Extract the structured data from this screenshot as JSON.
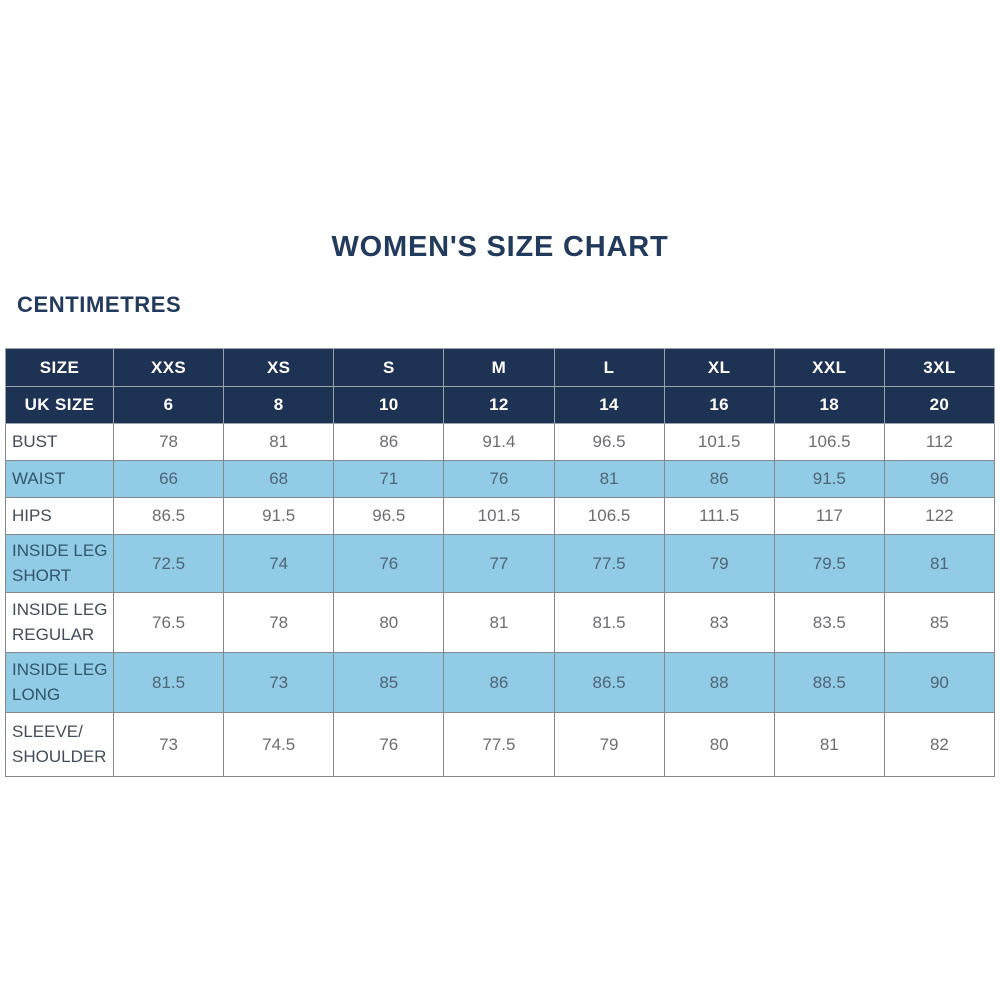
{
  "title": "WOMEN'S SIZE CHART",
  "subtitle": "CENTIMETRES",
  "colors": {
    "header_bg": "#1e3253",
    "header_text": "#ffffff",
    "highlight_row_bg": "#92cbe5",
    "grid_border": "#85898c",
    "title_text": "#223a5c",
    "value_text": "#6d6e71"
  },
  "chart_data": {
    "type": "table",
    "title": "WOMEN'S SIZE CHART",
    "unit": "CENTIMETRES",
    "header_rows": [
      {
        "label": "SIZE",
        "cells": [
          "XXS",
          "XS",
          "S",
          "M",
          "L",
          "XL",
          "XXL",
          "3XL"
        ]
      },
      {
        "label": "UK SIZE",
        "cells": [
          "6",
          "8",
          "10",
          "12",
          "14",
          "16",
          "18",
          "20"
        ]
      }
    ],
    "body_rows": [
      {
        "label": "BUST",
        "highlighted": false,
        "cells": [
          "78",
          "81",
          "86",
          "91.4",
          "96.5",
          "101.5",
          "106.5",
          "112"
        ]
      },
      {
        "label": "WAIST",
        "highlighted": true,
        "cells": [
          "66",
          "68",
          "71",
          "76",
          "81",
          "86",
          "91.5",
          "96"
        ]
      },
      {
        "label": "HIPS",
        "highlighted": false,
        "cells": [
          "86.5",
          "91.5",
          "96.5",
          "101.5",
          "106.5",
          "111.5",
          "117",
          "122"
        ]
      },
      {
        "label": "INSIDE LEG SHORT",
        "highlighted": true,
        "cells": [
          "72.5",
          "74",
          "76",
          "77",
          "77.5",
          "79",
          "79.5",
          "81"
        ]
      },
      {
        "label": "INSIDE LEG REGULAR",
        "highlighted": false,
        "cells": [
          "76.5",
          "78",
          "80",
          "81",
          "81.5",
          "83",
          "83.5",
          "85"
        ]
      },
      {
        "label": "INSIDE LEG LONG",
        "highlighted": true,
        "cells": [
          "81.5",
          "73",
          "85",
          "86",
          "86.5",
          "88",
          "88.5",
          "90"
        ]
      },
      {
        "label": "SLEEVE/ SHOULDER",
        "highlighted": false,
        "cells": [
          "73",
          "74.5",
          "76",
          "77.5",
          "79",
          "80",
          "81",
          "82"
        ]
      }
    ]
  }
}
